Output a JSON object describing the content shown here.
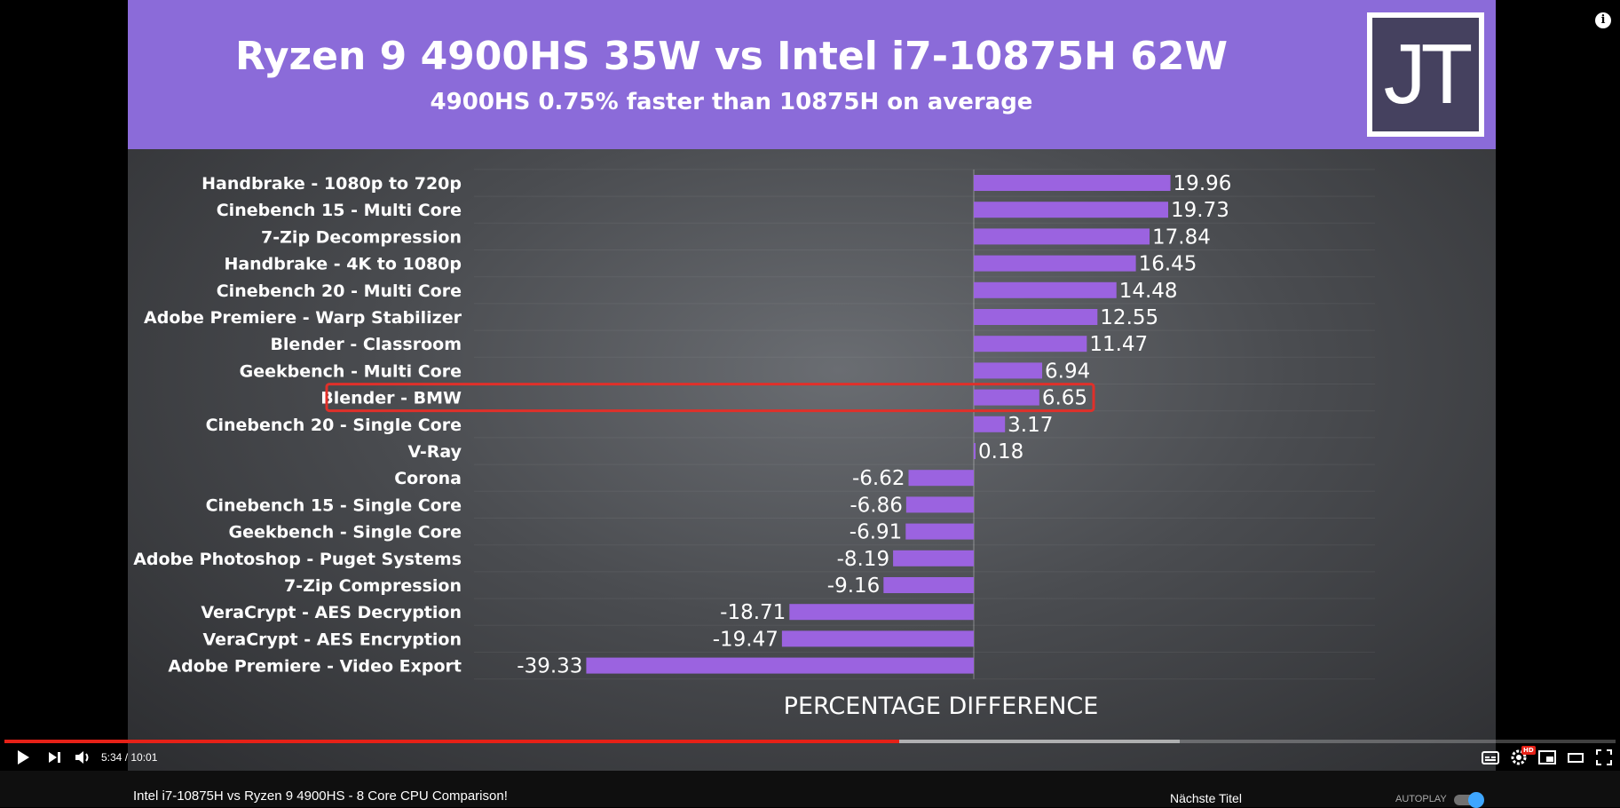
{
  "slide": {
    "title": "Ryzen 9 4900HS 35W vs Intel i7-10875H 62W",
    "subtitle": "4900HS 0.75% faster than 10875H on average",
    "logo": "JT"
  },
  "chart_data": {
    "type": "bar",
    "orientation": "horizontal",
    "xlabel": "PERCENTAGE DIFFERENCE",
    "categories": [
      "Handbrake - 1080p to 720p",
      "Cinebench 15 - Multi Core",
      "7-Zip Decompression",
      "Handbrake - 4K to 1080p",
      "Cinebench 20 - Multi Core",
      "Adobe Premiere - Warp Stabilizer",
      "Blender - Classroom",
      "Geekbench - Multi Core",
      "Blender - BMW",
      "Cinebench 20 - Single Core",
      "V-Ray",
      "Corona",
      "Cinebench 15 - Single Core",
      "Geekbench - Single Core",
      "Adobe Photoshop - Puget Systems",
      "7-Zip Compression",
      "VeraCrypt - AES Decryption",
      "VeraCrypt - AES Encryption",
      "Adobe Premiere - Video Export"
    ],
    "values": [
      19.96,
      19.73,
      17.84,
      16.45,
      14.48,
      12.55,
      11.47,
      6.94,
      6.65,
      3.17,
      0.18,
      -6.62,
      -6.86,
      -6.91,
      -8.19,
      -9.16,
      -18.71,
      -19.47,
      -39.33
    ],
    "highlighted": "Blender - BMW",
    "bar_color": "#9b63e0",
    "highlight_color": "#e0302a",
    "grid": true
  },
  "player": {
    "time": "5:34 / 10:01",
    "progress": 0.5555,
    "buffered": 0.7297,
    "icons": [
      "play-icon",
      "next-icon",
      "volume-icon",
      "subtitles-icon",
      "settings-icon",
      "miniplayer-icon",
      "theater-icon",
      "fullscreen-icon"
    ],
    "hd_badge": "HD",
    "progress_color": "#e62117"
  },
  "below": {
    "video_title": "Intel i7-10875H vs Ryzen 9 4900HS - 8 Core CPU Comparison!",
    "next_label": "Nächste Titel",
    "autoplay_label": "AUTOPLAY",
    "autoplay_on": true
  }
}
